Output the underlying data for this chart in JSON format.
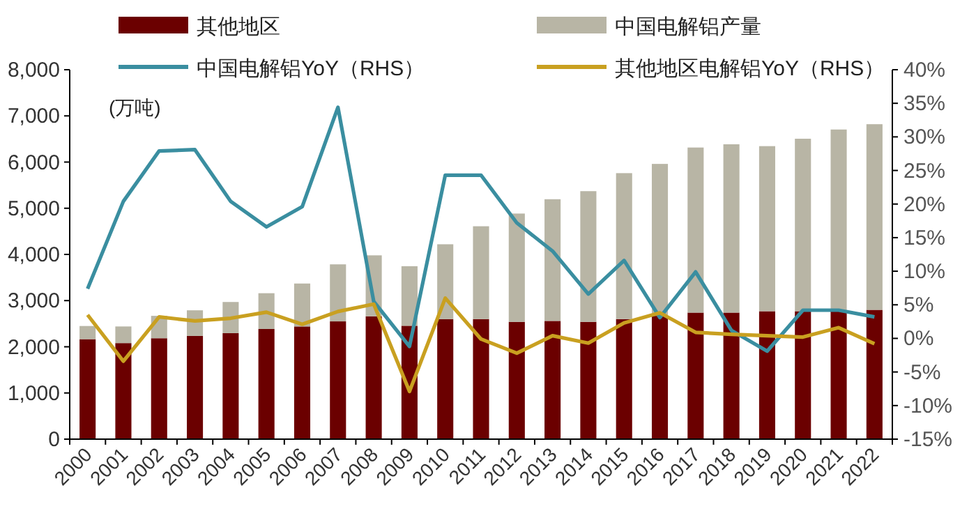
{
  "chart_data": {
    "type": "bar",
    "stacked": true,
    "legend": "top",
    "grid": false,
    "marker": "none",
    "line_style": "solid",
    "categories": [
      "2000",
      "2001",
      "2002",
      "2003",
      "2004",
      "2005",
      "2006",
      "2007",
      "2008",
      "2009",
      "2010",
      "2011",
      "2012",
      "2013",
      "2014",
      "2015",
      "2016",
      "2017",
      "2018",
      "2019",
      "2020",
      "2021",
      "2022"
    ],
    "series": [
      {
        "name": "其他地区",
        "color": "#6b0000",
        "values": [
          2165,
          2080,
          2185,
          2235,
          2295,
          2385,
          2440,
          2550,
          2660,
          2455,
          2600,
          2600,
          2540,
          2560,
          2540,
          2600,
          2670,
          2740,
          2740,
          2770,
          2770,
          2770,
          2800
        ]
      },
      {
        "name": "中国电解铝产量",
        "color": "#b8b5a5",
        "values": [
          285,
          360,
          485,
          555,
          675,
          775,
          930,
          1235,
          1320,
          1290,
          1620,
          2010,
          2345,
          2635,
          2830,
          3160,
          3290,
          3575,
          3645,
          3575,
          3735,
          3935,
          4020
        ]
      },
      {
        "name": "中国电解铝YoY（RHS）",
        "type": "line",
        "axis": "y2",
        "color": "#3a8ea0",
        "values": [
          7.4,
          20.4,
          27.9,
          28.1,
          20.4,
          16.6,
          19.6,
          34.4,
          5.5,
          -1.2,
          24.3,
          24.3,
          17.2,
          13.0,
          6.6,
          11.6,
          3.1,
          9.9,
          1.2,
          -1.9,
          4.2,
          4.2,
          3.2
        ]
      },
      {
        "name": "其他地区电解铝YoY（RHS）",
        "type": "line",
        "axis": "y2",
        "color": "#c9a020",
        "values": [
          3.5,
          -3.4,
          3.2,
          2.6,
          3.0,
          3.9,
          2.1,
          4.0,
          5.1,
          -7.9,
          6.0,
          -0.1,
          -2.2,
          0.4,
          -0.7,
          2.3,
          3.8,
          0.9,
          0.6,
          0.4,
          0.2,
          1.6,
          -0.8
        ]
      }
    ],
    "ylim": [
      0,
      8000
    ],
    "yticks": [
      {
        "value": 0,
        "label": "0"
      },
      {
        "value": 1000,
        "label": "1,000"
      },
      {
        "value": 2000,
        "label": "2,000"
      },
      {
        "value": 3000,
        "label": "3,000"
      },
      {
        "value": 4000,
        "label": "4,000"
      },
      {
        "value": 5000,
        "label": "5,000"
      },
      {
        "value": 6000,
        "label": "6,000"
      },
      {
        "value": 7000,
        "label": "7,000"
      },
      {
        "value": 8000,
        "label": "8,000"
      }
    ],
    "y2lim": [
      -15,
      40
    ],
    "y2ticks": [
      {
        "value": -15,
        "label": "-15%"
      },
      {
        "value": -10,
        "label": "-10%"
      },
      {
        "value": -5,
        "label": "-5%"
      },
      {
        "value": 0,
        "label": "0%"
      },
      {
        "value": 5,
        "label": "5%"
      },
      {
        "value": 10,
        "label": "10%"
      },
      {
        "value": 15,
        "label": "15%"
      },
      {
        "value": 20,
        "label": "20%"
      },
      {
        "value": 25,
        "label": "25%"
      },
      {
        "value": 30,
        "label": "30%"
      },
      {
        "value": 35,
        "label": "35%"
      },
      {
        "value": 40,
        "label": "40%"
      }
    ],
    "annotations": [
      "(万吨)"
    ]
  }
}
